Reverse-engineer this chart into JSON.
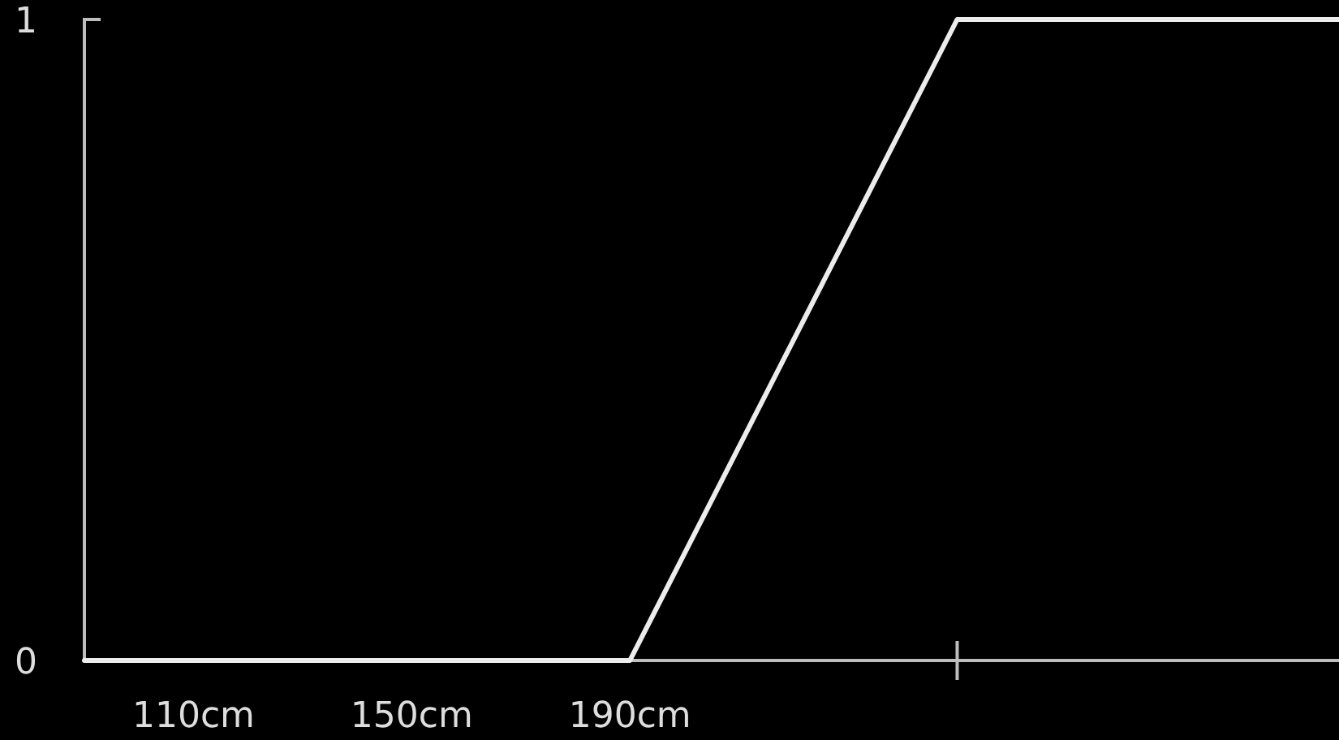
{
  "chart_data": {
    "type": "line",
    "x": [
      90,
      190,
      250,
      320
    ],
    "series": [
      {
        "color": "#ececec",
        "values": [
          0,
          0,
          1,
          1
        ]
      }
    ],
    "xlim": [
      90,
      320
    ],
    "xticks": [
      {
        "value": 110,
        "label": "110cm"
      },
      {
        "value": 150,
        "label": "150cm"
      },
      {
        "value": 190,
        "label": "190cm"
      },
      {
        "value": 250,
        "label": null
      }
    ],
    "ylim": [
      0,
      1
    ],
    "yticks": [
      0,
      1
    ],
    "marker": "none",
    "line_style": "solid"
  }
}
